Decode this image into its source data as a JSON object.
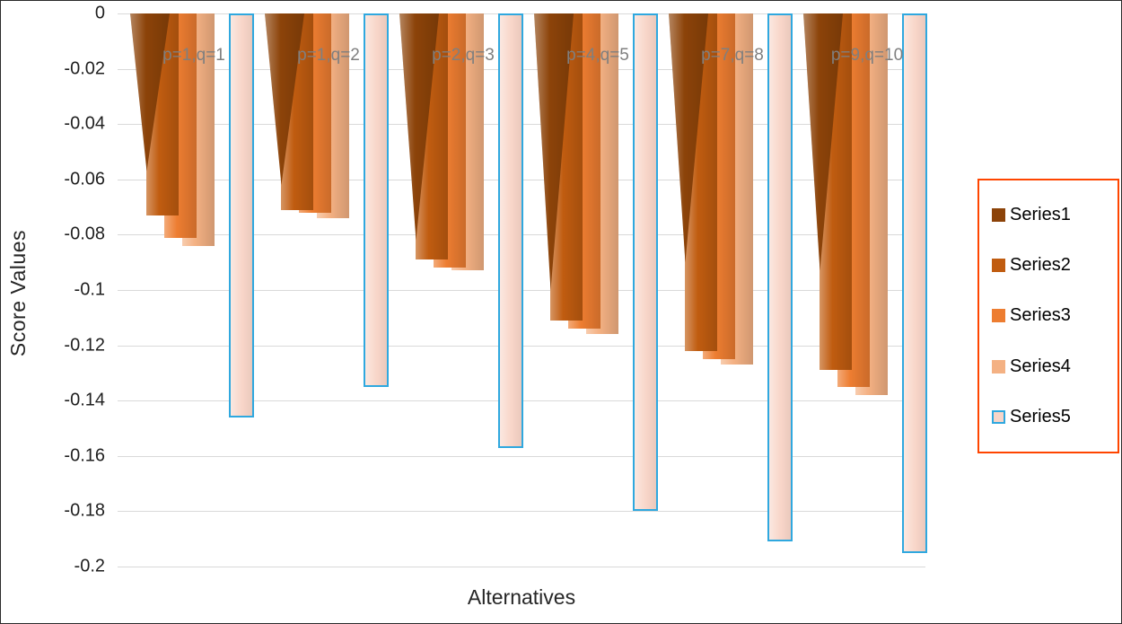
{
  "chart_data": {
    "type": "bar",
    "title": "",
    "xlabel": "Alternatives",
    "ylabel": "Score Values",
    "ylim": [
      -0.2,
      0
    ],
    "ytick_labels": [
      "0",
      "-0.02",
      "-0.04",
      "-0.06",
      "-0.08",
      "-0.1",
      "-0.12",
      "-0.14",
      "-0.16",
      "-0.18",
      "-0.2"
    ],
    "grid": true,
    "gridline_color": "#D9D9D9",
    "category_label_color": "#7F7F7F",
    "legend_position": "right",
    "legend_border_color": "#FF4500",
    "categories": [
      "p=1,q=1",
      "p=1,q=2",
      "p=2,q=3",
      "p=4,q=5",
      "p=7,q=8",
      "p=9,q=10"
    ],
    "series": [
      {
        "name": "Series1",
        "color": "#8C4309",
        "values": [
          -0.057,
          -0.062,
          -0.082,
          -0.1,
          -0.09,
          -0.093
        ]
      },
      {
        "name": "Series2",
        "color": "#C05C10",
        "values": [
          -0.073,
          -0.071,
          -0.089,
          -0.111,
          -0.122,
          -0.129
        ]
      },
      {
        "name": "Series3",
        "color": "#ED7D31",
        "values": [
          -0.081,
          -0.072,
          -0.092,
          -0.114,
          -0.125,
          -0.135
        ]
      },
      {
        "name": "Series4",
        "color": "#F4B183",
        "values": [
          -0.084,
          -0.074,
          -0.093,
          -0.116,
          -0.127,
          -0.138
        ]
      },
      {
        "name": "Series5",
        "color": "#F8D5C8",
        "border_color": "#2FA8DF",
        "values": [
          -0.146,
          -0.135,
          -0.157,
          -0.18,
          -0.191,
          -0.195
        ]
      }
    ]
  }
}
